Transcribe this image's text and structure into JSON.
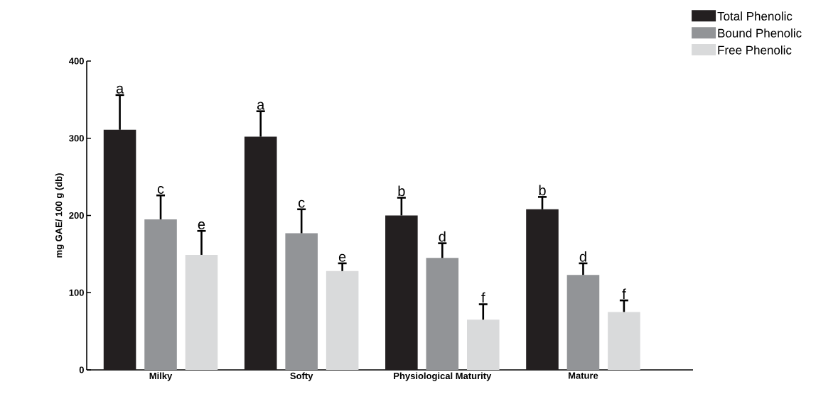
{
  "chart_data": {
    "type": "bar",
    "ylabel": "mg GAE/ 100 g (db)",
    "categories": [
      "Milky",
      "Softy",
      "Physiological Maturity",
      "Mature"
    ],
    "series": [
      {
        "name": "Total Phenolic",
        "color": "#231f20",
        "values": [
          311,
          302,
          200,
          208
        ],
        "errors": [
          45,
          33,
          23,
          16
        ],
        "value_labels": [
          "a",
          "a",
          "b",
          "b"
        ]
      },
      {
        "name": "Bound Phenolic",
        "color": "#929497",
        "values": [
          195,
          177,
          145,
          123
        ],
        "errors": [
          31,
          31,
          19,
          15
        ],
        "value_labels": [
          "c",
          "c",
          "d",
          "d"
        ]
      },
      {
        "name": "Free Phenolic",
        "color": "#d9dadb",
        "values": [
          149,
          128,
          65,
          75
        ],
        "errors": [
          31,
          10,
          20,
          15
        ],
        "value_labels": [
          "e",
          "e",
          "f",
          "f"
        ]
      }
    ],
    "ylim": [
      0,
      400
    ],
    "yticks": [
      0,
      100,
      200,
      300,
      400
    ],
    "grid": false,
    "legend": "top right"
  }
}
